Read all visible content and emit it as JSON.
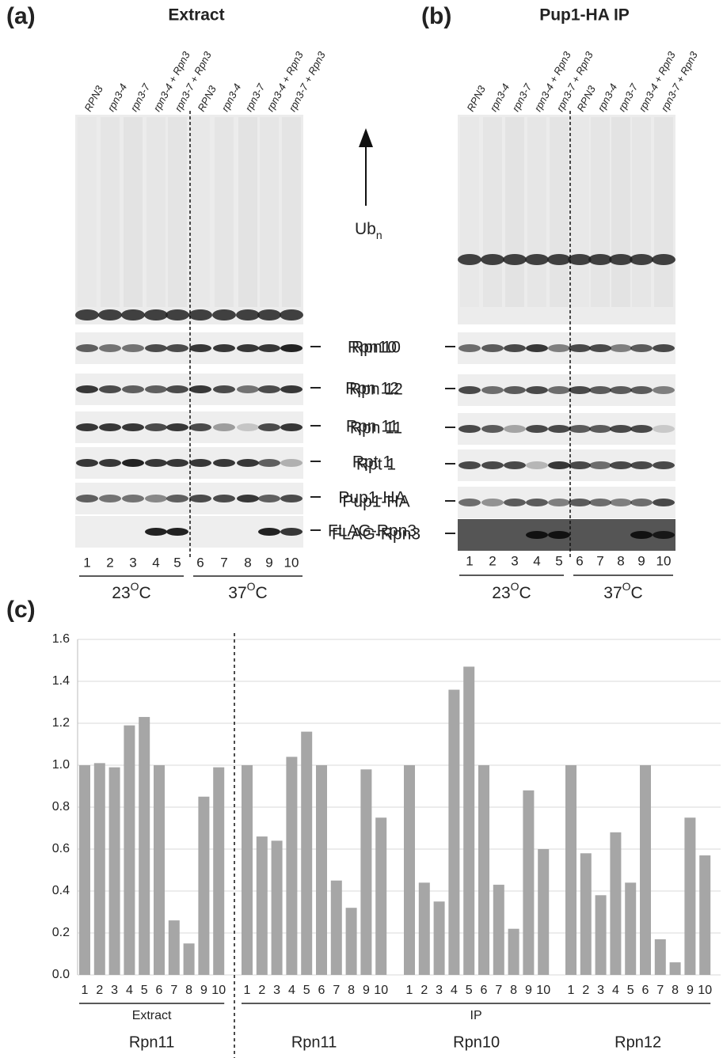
{
  "panels": {
    "a": {
      "letter": "(a)",
      "title": "Extract"
    },
    "b": {
      "letter": "(b)",
      "title": "Pup1-HA IP"
    },
    "c": {
      "letter": "(c)"
    }
  },
  "lane_names": [
    "RPN3",
    "rpn3-4",
    "rpn3-7",
    "rpn3-4 + Rpn3",
    "rpn3-7 + Rpn3"
  ],
  "lane_numbers": [
    "1",
    "2",
    "3",
    "4",
    "5",
    "6",
    "7",
    "8",
    "9",
    "10"
  ],
  "blot_labels": [
    "Rpn10",
    "Rpn 12",
    "Rpn 11",
    "Rpt 1",
    "Pup1-HA",
    "FLAG-Rpn3"
  ],
  "ub_label": {
    "text": "Ub",
    "sub": "n"
  },
  "temperatures": [
    {
      "number": "23",
      "sup": "O",
      "unit": "C"
    },
    {
      "number": "37",
      "sup": "O",
      "unit": "C"
    }
  ],
  "chart_data": {
    "type": "bar",
    "color": "#a6a6a6",
    "grid": true,
    "categories": [
      "1",
      "2",
      "3",
      "4",
      "5",
      "6",
      "7",
      "8",
      "9",
      "10"
    ],
    "ylim": [
      0,
      1.6
    ],
    "yticks": [
      {
        "value": 0,
        "label": "0.0"
      },
      0.2,
      0.4,
      0.6,
      0.8,
      {
        "value": 1,
        "label": "1.0"
      },
      1.2,
      1.4,
      1.6
    ],
    "sections": [
      "Extract",
      "IP"
    ],
    "groups": [
      {
        "name": "Rpn11",
        "section": 0,
        "values": [
          1.0,
          1.01,
          0.99,
          1.19,
          1.23,
          1.0,
          0.26,
          0.15,
          0.85,
          0.99
        ]
      },
      {
        "name": "Rpn11",
        "section": 1,
        "values": [
          1.0,
          0.66,
          0.64,
          1.04,
          1.16,
          1.0,
          0.45,
          0.32,
          0.98,
          0.75
        ]
      },
      {
        "name": "Rpn10",
        "section": 1,
        "values": [
          1.0,
          0.44,
          0.35,
          1.36,
          1.47,
          1.0,
          0.43,
          0.22,
          0.88,
          0.6
        ]
      },
      {
        "name": "Rpn12",
        "section": 1,
        "values": [
          1.0,
          0.58,
          0.38,
          0.68,
          0.44,
          1.0,
          0.17,
          0.06,
          0.75,
          0.57
        ]
      }
    ]
  }
}
